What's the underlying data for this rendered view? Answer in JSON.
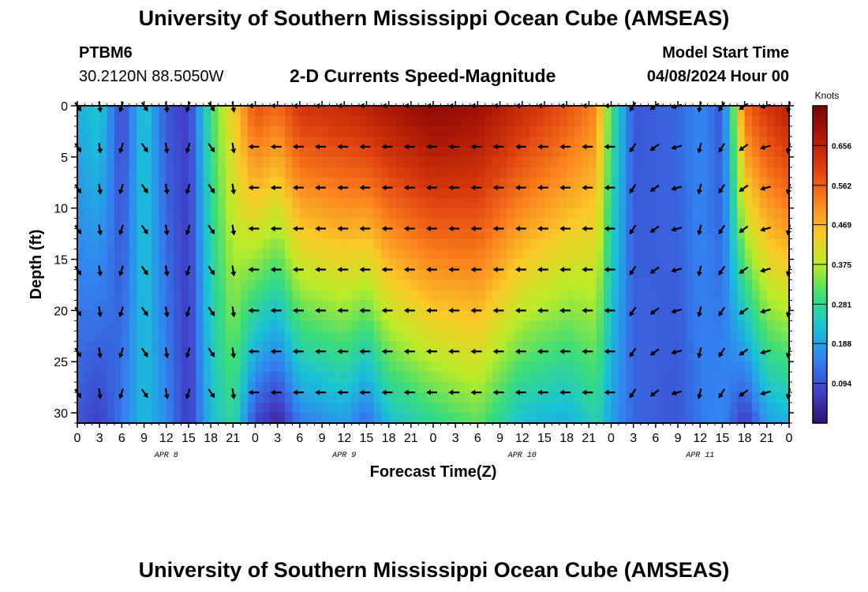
{
  "header": {
    "title": "University of Southern Mississippi Ocean Cube (AMSEAS)",
    "station": "PTBM6",
    "coords": "30.2120N  88.5050W",
    "subtitle": "2-D Currents Speed-Magnitude",
    "model_start_label": "Model Start Time",
    "model_start_value": "04/08/2024 Hour 00"
  },
  "footer": {
    "title": "University of Southern Mississippi Ocean Cube (AMSEAS)"
  },
  "chart_data": {
    "type": "heatmap",
    "title": "2-D Currents Speed-Magnitude",
    "xlabel": "Forecast Time(Z)",
    "ylabel": "Depth (ft)",
    "x_hours_range": [
      0,
      96
    ],
    "x_tick_labels": [
      "0",
      "3",
      "6",
      "9",
      "12",
      "15",
      "18",
      "21",
      "0",
      "3",
      "6",
      "9",
      "12",
      "15",
      "18",
      "21",
      "0",
      "3",
      "6",
      "9",
      "12",
      "15",
      "18",
      "21",
      "0",
      "3",
      "6",
      "9",
      "12",
      "15",
      "18",
      "21",
      "0"
    ],
    "date_labels": [
      {
        "hour": 12,
        "label": "APR 8"
      },
      {
        "hour": 36,
        "label": "APR 9"
      },
      {
        "hour": 60,
        "label": "APR 10"
      },
      {
        "hour": 84,
        "label": "APR 11"
      }
    ],
    "y_range": [
      0,
      31
    ],
    "y_ticks": [
      0,
      5,
      10,
      15,
      20,
      25,
      30
    ],
    "colorbar": {
      "unit": "Knots",
      "min": 0.0,
      "max": 0.75,
      "ticks": [
        "0.656",
        "0.562",
        "0.469",
        "0.375",
        "0.281",
        "0.188",
        "0.094"
      ],
      "tick_values": [
        0.656,
        0.562,
        0.469,
        0.375,
        0.281,
        0.188,
        0.094
      ]
    },
    "arrow_depths": [
      0,
      4,
      8,
      12,
      16,
      20,
      24,
      28
    ],
    "arrow_hours_step": 3,
    "speed_profile": [
      {
        "hour": 0,
        "surface": 0.2,
        "bottom": 0.1
      },
      {
        "hour": 3,
        "surface": 0.24,
        "bottom": 0.07
      },
      {
        "hour": 6,
        "surface": 0.08,
        "bottom": 0.14
      },
      {
        "hour": 9,
        "surface": 0.24,
        "bottom": 0.22
      },
      {
        "hour": 12,
        "surface": 0.1,
        "bottom": 0.16
      },
      {
        "hour": 15,
        "surface": 0.07,
        "bottom": 0.06
      },
      {
        "hour": 18,
        "surface": 0.3,
        "bottom": 0.22
      },
      {
        "hour": 21,
        "surface": 0.44,
        "bottom": 0.28
      },
      {
        "hour": 24,
        "surface": 0.58,
        "bottom": 0.08
      },
      {
        "hour": 27,
        "surface": 0.55,
        "bottom": 0.03
      },
      {
        "hour": 30,
        "surface": 0.62,
        "bottom": 0.14
      },
      {
        "hour": 36,
        "surface": 0.64,
        "bottom": 0.18
      },
      {
        "hour": 39,
        "surface": 0.66,
        "bottom": 0.12
      },
      {
        "hour": 42,
        "surface": 0.68,
        "bottom": 0.22
      },
      {
        "hour": 48,
        "surface": 0.72,
        "bottom": 0.28
      },
      {
        "hour": 54,
        "surface": 0.7,
        "bottom": 0.32
      },
      {
        "hour": 60,
        "surface": 0.64,
        "bottom": 0.22
      },
      {
        "hour": 66,
        "surface": 0.58,
        "bottom": 0.2
      },
      {
        "hour": 70,
        "surface": 0.52,
        "bottom": 0.26
      },
      {
        "hour": 72,
        "surface": 0.3,
        "bottom": 0.18
      },
      {
        "hour": 75,
        "surface": 0.1,
        "bottom": 0.12
      },
      {
        "hour": 81,
        "surface": 0.12,
        "bottom": 0.1
      },
      {
        "hour": 84,
        "surface": 0.16,
        "bottom": 0.14
      },
      {
        "hour": 87,
        "surface": 0.1,
        "bottom": 0.16
      },
      {
        "hour": 90,
        "surface": 0.55,
        "bottom": 0.06
      },
      {
        "hour": 93,
        "surface": 0.62,
        "bottom": 0.18
      },
      {
        "hour": 96,
        "surface": 0.66,
        "bottom": 0.2
      }
    ]
  }
}
